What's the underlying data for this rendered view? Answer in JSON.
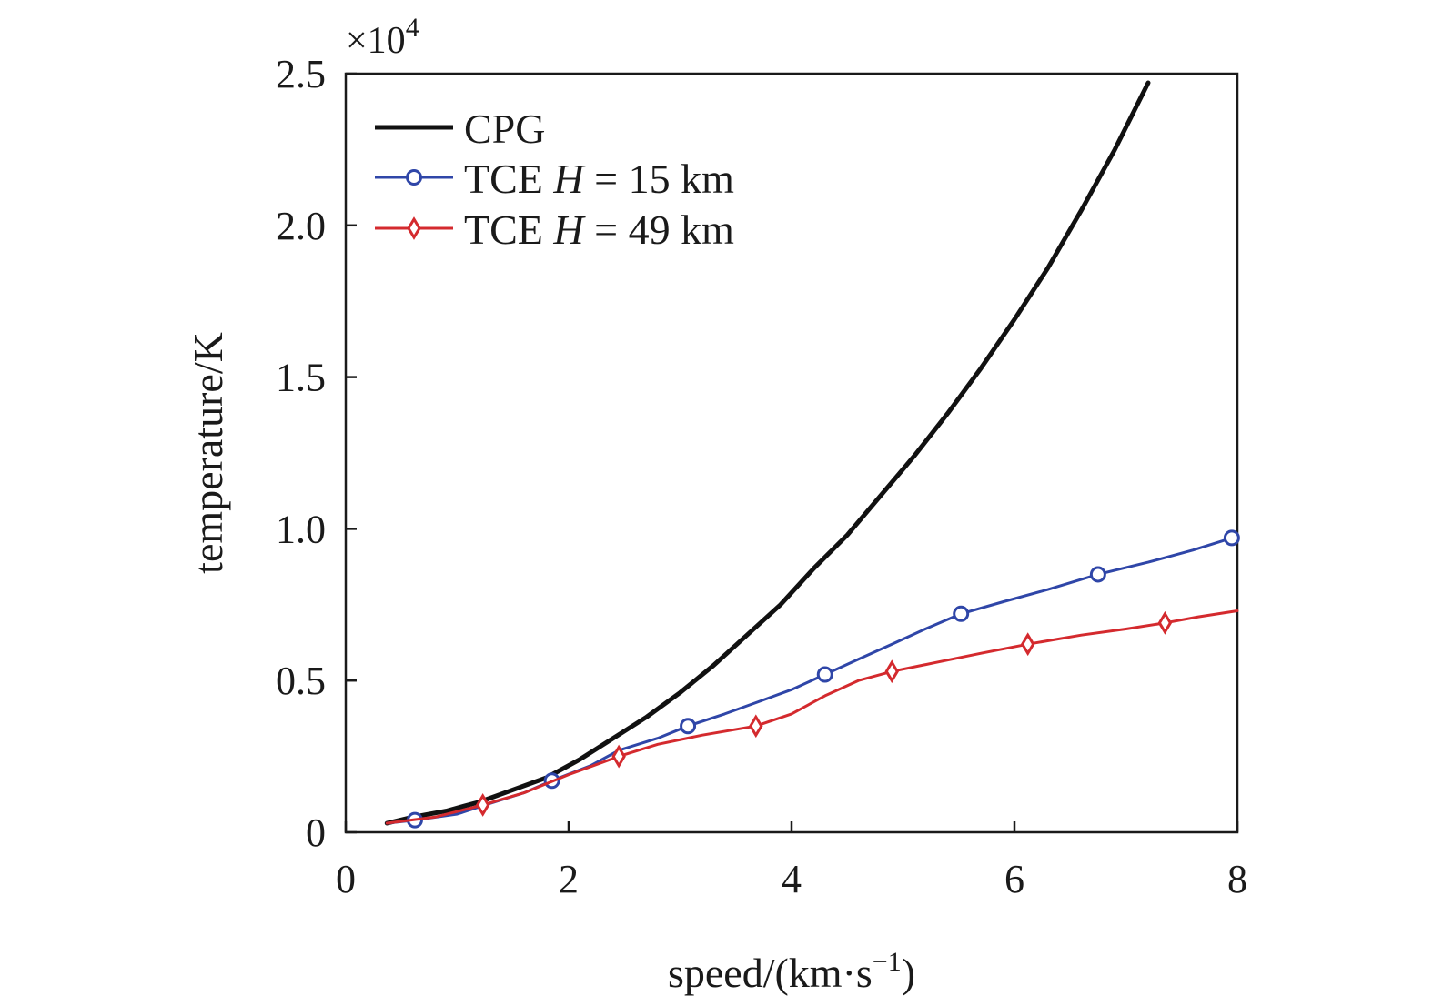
{
  "chart_data": {
    "type": "line",
    "xlabel": "speed/(km·s",
    "xlabel_sup": "−1",
    "xlabel_tail": ")",
    "ylabel": "temperature/K",
    "y_multiplier": "×10",
    "y_multiplier_exp": "4",
    "xlim": [
      0,
      8
    ],
    "ylim": [
      0,
      2.5
    ],
    "x_ticks": [
      "0",
      "2",
      "4",
      "6",
      "8"
    ],
    "y_ticks": [
      "0",
      "0.5",
      "1.0",
      "1.5",
      "2.0",
      "2.5"
    ],
    "grid": false,
    "legend_position": "top-left",
    "series": [
      {
        "name": "CPG",
        "color": "#111111",
        "marker": "none",
        "x": [
          0.37,
          0.6,
          0.9,
          1.2,
          1.5,
          1.8,
          2.1,
          2.4,
          2.7,
          3.0,
          3.3,
          3.6,
          3.9,
          4.2,
          4.5,
          4.8,
          5.1,
          5.4,
          5.7,
          6.0,
          6.3,
          6.6,
          6.9,
          7.2
        ],
        "y": [
          0.03,
          0.05,
          0.07,
          0.1,
          0.14,
          0.18,
          0.24,
          0.31,
          0.38,
          0.46,
          0.55,
          0.65,
          0.75,
          0.87,
          0.98,
          1.11,
          1.24,
          1.38,
          1.53,
          1.69,
          1.86,
          2.05,
          2.25,
          2.47
        ]
      },
      {
        "name": "TCE H = 15 km",
        "legend_prefix": "TCE ",
        "legend_var": "H",
        "legend_suffix": " = 15 km",
        "color": "#2f46a8",
        "marker": "circle",
        "x": [
          0.37,
          0.62,
          1.0,
          1.25,
          1.6,
          1.85,
          2.2,
          2.45,
          2.8,
          3.07,
          3.4,
          3.7,
          4.0,
          4.3,
          4.6,
          4.9,
          5.2,
          5.52,
          5.9,
          6.3,
          6.75,
          7.2,
          7.6,
          7.95
        ],
        "y": [
          0.03,
          0.04,
          0.06,
          0.09,
          0.13,
          0.17,
          0.22,
          0.27,
          0.31,
          0.35,
          0.39,
          0.43,
          0.47,
          0.52,
          0.57,
          0.62,
          0.67,
          0.72,
          0.76,
          0.8,
          0.85,
          0.89,
          0.93,
          0.97
        ],
        "marker_x": [
          0.62,
          1.85,
          3.07,
          4.3,
          5.52,
          6.75,
          7.95
        ],
        "marker_y": [
          0.04,
          0.17,
          0.35,
          0.52,
          0.72,
          0.85,
          0.97
        ]
      },
      {
        "name": "TCE H = 49 km",
        "legend_prefix": "TCE ",
        "legend_var": "H",
        "legend_suffix": " = 49 km",
        "color": "#d42a2e",
        "marker": "diamond",
        "x": [
          0.37,
          0.8,
          1.23,
          1.6,
          2.0,
          2.45,
          2.8,
          3.2,
          3.68,
          4.0,
          4.3,
          4.6,
          4.9,
          5.3,
          5.7,
          6.12,
          6.6,
          7.0,
          7.35,
          7.65,
          8.0
        ],
        "y": [
          0.03,
          0.05,
          0.09,
          0.13,
          0.19,
          0.25,
          0.29,
          0.32,
          0.35,
          0.39,
          0.45,
          0.5,
          0.53,
          0.56,
          0.59,
          0.62,
          0.65,
          0.67,
          0.69,
          0.71,
          0.73
        ],
        "marker_x": [
          1.23,
          2.45,
          3.68,
          4.9,
          6.12,
          7.35
        ],
        "marker_y": [
          0.09,
          0.25,
          0.35,
          0.53,
          0.62,
          0.69
        ]
      }
    ]
  }
}
